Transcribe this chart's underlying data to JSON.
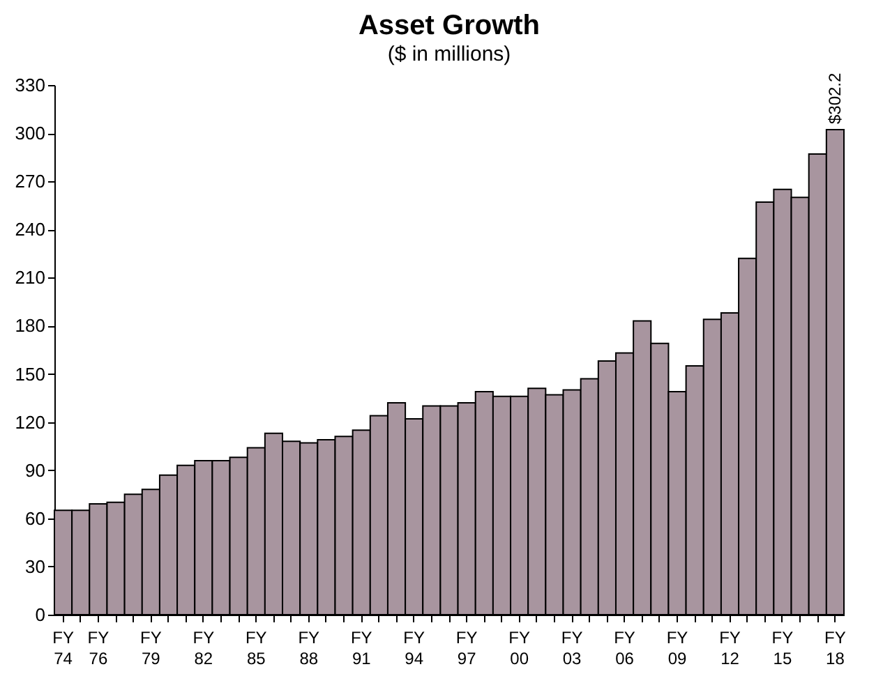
{
  "chart_data": {
    "type": "bar",
    "title": "Asset Growth",
    "subtitle": "($ in millions)",
    "categories": [
      "FY 74",
      null,
      "FY 76",
      null,
      null,
      "FY 79",
      null,
      null,
      "FY 82",
      null,
      null,
      "FY 85",
      null,
      null,
      "FY 88",
      null,
      null,
      "FY 91",
      null,
      null,
      "FY 94",
      null,
      null,
      "FY 97",
      null,
      null,
      "FY 00",
      null,
      null,
      "FY 03",
      null,
      null,
      "FY 06",
      null,
      null,
      "FY 09",
      null,
      null,
      "FY 12",
      null,
      null,
      "FY 15",
      null,
      null,
      "FY 18"
    ],
    "values": [
      65,
      65,
      69,
      70,
      75,
      78,
      87,
      93,
      96,
      96,
      98,
      104,
      113,
      108,
      107,
      109,
      111,
      115,
      124,
      132,
      122,
      130,
      130,
      132,
      139,
      136,
      136,
      141,
      137,
      140,
      147,
      158,
      163,
      183,
      169,
      139,
      155,
      184,
      188,
      222,
      257,
      265,
      260,
      287,
      302.2
    ],
    "value_labels": [
      null,
      null,
      null,
      null,
      null,
      null,
      null,
      null,
      null,
      null,
      null,
      null,
      null,
      null,
      null,
      null,
      null,
      null,
      null,
      null,
      null,
      null,
      null,
      null,
      null,
      null,
      null,
      null,
      null,
      null,
      null,
      null,
      null,
      null,
      null,
      null,
      null,
      null,
      null,
      null,
      null,
      null,
      null,
      null,
      "$302.2"
    ],
    "color": "#a8959f",
    "ylim": [
      0,
      330
    ],
    "yticks": [
      0,
      30,
      60,
      90,
      120,
      150,
      180,
      210,
      240,
      270,
      300,
      330
    ],
    "grid": false
  }
}
